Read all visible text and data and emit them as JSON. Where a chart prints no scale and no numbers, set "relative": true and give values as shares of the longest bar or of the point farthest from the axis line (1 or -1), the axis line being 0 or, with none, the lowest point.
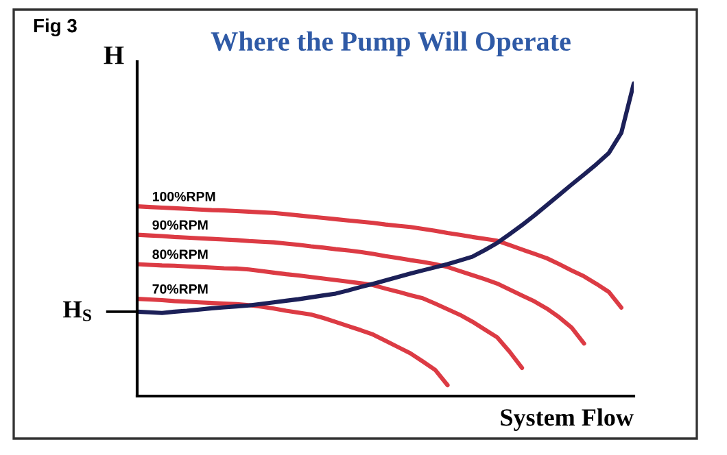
{
  "chart_data": {
    "type": "line",
    "relative": true,
    "title": "Where the Pump Will Operate",
    "xlabel": "System Flow",
    "ylabel": "H",
    "annotations": [
      "Fig 3",
      "H$_{S}$"
    ],
    "categories": [
      null,
      null,
      null,
      null,
      null,
      null,
      null,
      null,
      null,
      null,
      null,
      null,
      null,
      null,
      null,
      null,
      null,
      null,
      null,
      null,
      null,
      null,
      null,
      null,
      null,
      null,
      null,
      null,
      null,
      null,
      null,
      null,
      null,
      null,
      null,
      null,
      null,
      null,
      null,
      null,
      null
    ],
    "series": [
      {
        "name": "100%RPM",
        "color": "#dc3b44",
        "values": [
          0.607,
          0.605,
          0.603,
          0.601,
          0.599,
          0.597,
          0.595,
          0.594,
          0.592,
          0.59,
          0.588,
          0.586,
          0.582,
          0.578,
          0.574,
          0.57,
          0.566,
          0.562,
          0.558,
          0.554,
          0.549,
          0.545,
          0.541,
          0.535,
          0.529,
          0.522,
          0.516,
          0.509,
          0.503,
          0.497,
          0.483,
          0.469,
          0.455,
          0.441,
          0.422,
          0.402,
          0.383,
          0.359,
          0.333,
          0.283,
          null
        ]
      },
      {
        "name": "90%RPM",
        "color": "#dc3b44",
        "values": [
          0.516,
          0.514,
          0.512,
          0.509,
          0.507,
          0.505,
          0.503,
          0.501,
          0.499,
          0.496,
          0.494,
          0.492,
          0.488,
          0.484,
          0.479,
          0.475,
          0.47,
          0.466,
          0.461,
          0.455,
          0.448,
          0.442,
          0.435,
          0.429,
          0.422,
          0.413,
          0.4,
          0.387,
          0.374,
          0.36,
          0.341,
          0.322,
          0.303,
          0.28,
          0.252,
          0.219,
          0.168,
          null,
          null,
          null,
          null
        ]
      },
      {
        "name": "80%RPM",
        "color": "#dc3b44",
        "values": [
          0.422,
          0.42,
          0.418,
          0.417,
          0.415,
          0.413,
          0.411,
          0.409,
          0.408,
          0.405,
          0.4,
          0.395,
          0.39,
          0.386,
          0.381,
          0.376,
          0.371,
          0.366,
          0.361,
          0.355,
          0.344,
          0.334,
          0.323,
          0.313,
          0.296,
          0.278,
          0.26,
          0.238,
          0.213,
          0.188,
          0.142,
          0.09,
          null,
          null,
          null,
          null,
          null,
          null,
          null,
          null,
          null
        ]
      },
      {
        "name": "70%RPM",
        "color": "#dc3b44",
        "values": [
          0.311,
          0.309,
          0.307,
          0.304,
          0.302,
          0.3,
          0.298,
          0.296,
          0.294,
          0.291,
          0.286,
          0.28,
          0.273,
          0.267,
          0.261,
          0.25,
          0.237,
          0.224,
          0.211,
          0.197,
          0.177,
          0.157,
          0.137,
          0.111,
          0.084,
          0.035,
          null,
          null,
          null,
          null,
          null,
          null,
          null,
          null,
          null,
          null,
          null,
          null,
          null,
          null,
          null
        ]
      },
      {
        "color": "#1c2058",
        "values": [
          0.27,
          0.268,
          0.266,
          0.27,
          0.273,
          0.277,
          0.281,
          0.284,
          0.287,
          0.29,
          0.295,
          0.3,
          0.305,
          0.31,
          0.316,
          0.322,
          0.328,
          0.338,
          0.349,
          0.359,
          0.37,
          0.381,
          0.392,
          0.402,
          0.412,
          0.422,
          0.434,
          0.446,
          0.467,
          0.49,
          0.518,
          0.547,
          0.578,
          0.611,
          0.644,
          0.677,
          0.709,
          0.742,
          0.778,
          0.842,
          1.0
        ]
      }
    ]
  }
}
